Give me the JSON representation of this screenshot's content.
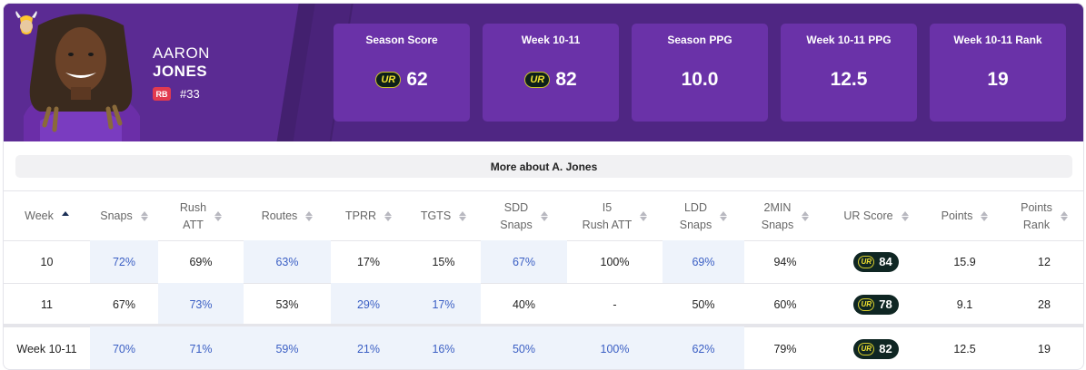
{
  "player": {
    "first_name": "AARON",
    "last_name": "JONES",
    "position": "RB",
    "jersey": "#33",
    "team_logo_icon": "vikings-logo-icon",
    "headshot_icon": "player-headshot-icon"
  },
  "colors": {
    "header_bg": "#4f2683",
    "stat_box_bg": "#6a32a8",
    "position_badge": "#e23a4f",
    "highlight_cell": "#eef3fb",
    "highlight_text": "#3b5fc4",
    "ur_badge": "#0f2623",
    "ur_logo_yellow": "#f2e230"
  },
  "stats": [
    {
      "label": "Season Score",
      "value": "62",
      "ur_logo": true
    },
    {
      "label": "Week 10-11",
      "value": "82",
      "ur_logo": true
    },
    {
      "label": "Season PPG",
      "value": "10.0",
      "ur_logo": false
    },
    {
      "label": "Week 10-11 PPG",
      "value": "12.5",
      "ur_logo": false
    },
    {
      "label": "Week 10-11 Rank",
      "value": "19",
      "ur_logo": false
    }
  ],
  "ur_logo_text": "UR",
  "more_button": "More about A. Jones",
  "table": {
    "headers": [
      {
        "line1": "Week",
        "line2": ""
      },
      {
        "line1": "Snaps",
        "line2": ""
      },
      {
        "line1": "Rush",
        "line2": "ATT"
      },
      {
        "line1": "Routes",
        "line2": ""
      },
      {
        "line1": "TPRR",
        "line2": ""
      },
      {
        "line1": "TGTS",
        "line2": ""
      },
      {
        "line1": "SDD",
        "line2": "Snaps"
      },
      {
        "line1": "I5",
        "line2": "Rush ATT"
      },
      {
        "line1": "LDD",
        "line2": "Snaps"
      },
      {
        "line1": "2MIN",
        "line2": "Snaps"
      },
      {
        "line1": "UR Score",
        "line2": ""
      },
      {
        "line1": "Points",
        "line2": ""
      },
      {
        "line1": "Points",
        "line2": "Rank"
      }
    ],
    "rows": [
      [
        "10",
        "72%",
        "69%",
        "63%",
        "17%",
        "15%",
        "67%",
        "100%",
        "69%",
        "94%",
        "84",
        "15.9",
        "12"
      ],
      [
        "11",
        "67%",
        "73%",
        "53%",
        "29%",
        "17%",
        "40%",
        "-",
        "50%",
        "60%",
        "78",
        "9.1",
        "28"
      ],
      [
        "Week 10-11",
        "70%",
        "71%",
        "59%",
        "21%",
        "16%",
        "50%",
        "100%",
        "62%",
        "79%",
        "82",
        "12.5",
        "19"
      ]
    ]
  }
}
